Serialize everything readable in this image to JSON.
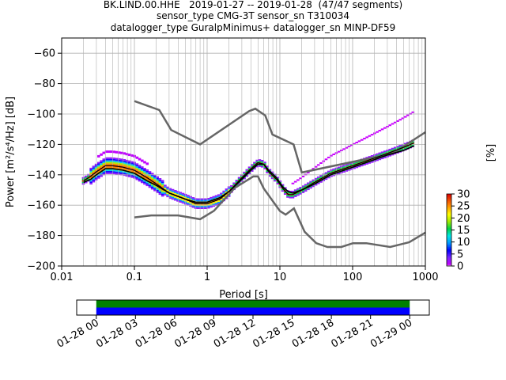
{
  "title_lines": [
    "BK.LIND.00.HHE   2019-01-27 -- 2019-01-28  (47/47 segments)",
    "sensor_type CMG-3T sensor_sn T310034",
    "datalogger_type GuralpMinimus+ datalogger_sn MINP-DF59"
  ],
  "chart_data": [
    {
      "type": "heatmap",
      "xlabel": "Period [s]",
      "ylabel": "Power [m²/s⁴/Hz] [dB]",
      "xscale": "log",
      "xlim": [
        0.01,
        1000
      ],
      "ylim": [
        -200,
        -50
      ],
      "xtick_labels": [
        "0.01",
        "0.1",
        "1",
        "10",
        "100",
        "1000"
      ],
      "yticks": [
        -200,
        -180,
        -160,
        -140,
        -120,
        -100,
        -80,
        -60
      ],
      "grid": true,
      "colorbar": {
        "label": "[%]",
        "ticks": [
          0,
          5,
          10,
          15,
          20,
          25,
          30
        ],
        "range": [
          0,
          30
        ],
        "colormap": "pqlx"
      },
      "nlnm": {
        "period": [
          0.1,
          0.17,
          0.4,
          0.8,
          1.24,
          2.4,
          4.3,
          5.0,
          6.0,
          10.0,
          12.0,
          15.6,
          21.9,
          31.6,
          45.0,
          70.0,
          101.0,
          154.0,
          328.0,
          600.0,
          1000.0
        ],
        "power": [
          -168.0,
          -166.7,
          -166.7,
          -169.2,
          -163.7,
          -148.6,
          -141.1,
          -141.1,
          -149.0,
          -163.8,
          -166.2,
          -162.1,
          -177.5,
          -185.0,
          -187.5,
          -187.5,
          -185.0,
          -185.0,
          -187.5,
          -184.4,
          -178.0
        ]
      },
      "nhnm": {
        "period": [
          0.1,
          0.22,
          0.32,
          0.8,
          3.8,
          4.6,
          6.3,
          7.9,
          15.4,
          20.0,
          354.8,
          1000.0
        ],
        "power": [
          -91.5,
          -97.4,
          -110.5,
          -120.0,
          -98.0,
          -96.5,
          -101.0,
          -113.5,
          -120.0,
          -138.5,
          -126.0,
          -112.0
        ]
      },
      "mean_psd": {
        "period": [
          0.02,
          0.025,
          0.03,
          0.04,
          0.05,
          0.07,
          0.1,
          0.15,
          0.2,
          0.3,
          0.5,
          0.7,
          1.0,
          1.5,
          2.0,
          3.0,
          4.0,
          5.0,
          6.0,
          7.0,
          9.0,
          11.0,
          13.0,
          15.0,
          20.0,
          30.0,
          50.0,
          100.0,
          200.0,
          300.0,
          500.0,
          700.0
        ],
        "power": [
          -145,
          -143,
          -140,
          -136,
          -136,
          -137,
          -139,
          -144,
          -147,
          -152,
          -156,
          -158,
          -158,
          -155,
          -151,
          -143,
          -137,
          -133,
          -133,
          -137,
          -142,
          -148,
          -151,
          -152,
          -150,
          -146,
          -140,
          -135,
          -130,
          -127,
          -124,
          -121
        ]
      },
      "mode_psd": {
        "period": [
          0.02,
          0.025,
          0.03,
          0.04,
          0.05,
          0.07,
          0.1,
          0.15,
          0.2,
          0.3,
          0.5,
          0.7,
          1.0,
          1.5,
          2.0,
          3.0,
          4.0,
          5.0,
          6.0,
          7.0,
          9.0,
          11.0,
          13.0,
          15.0,
          20.0,
          30.0,
          50.0,
          100.0,
          200.0,
          300.0,
          500.0,
          700.0
        ],
        "power": [
          -144,
          -141,
          -138,
          -134,
          -134,
          -135,
          -137,
          -142,
          -146,
          -152,
          -156,
          -159,
          -159,
          -156,
          -151,
          -142,
          -136,
          -132,
          -133,
          -138,
          -143,
          -149,
          -153,
          -153,
          -150,
          -145,
          -139,
          -134,
          -129,
          -126,
          -122,
          -119
        ]
      }
    },
    {
      "type": "timeline",
      "xlim": [
        "2019-01-27 22:30",
        "2019-01-29 01:30"
      ],
      "xtick_labels": [
        "01-28 00",
        "01-28 03",
        "01-28 06",
        "01-28 09",
        "01-28 12",
        "01-28 15",
        "01-28 18",
        "01-28 21",
        "01-29 00"
      ],
      "data_coverage": [
        "2019-01-28 00:00",
        "2019-01-29 00:00"
      ],
      "psd_coverage": [
        "2019-01-28 00:00",
        "2019-01-29 00:00"
      ],
      "colors": {
        "data": "#008000",
        "psd": "#0000ff"
      }
    }
  ]
}
